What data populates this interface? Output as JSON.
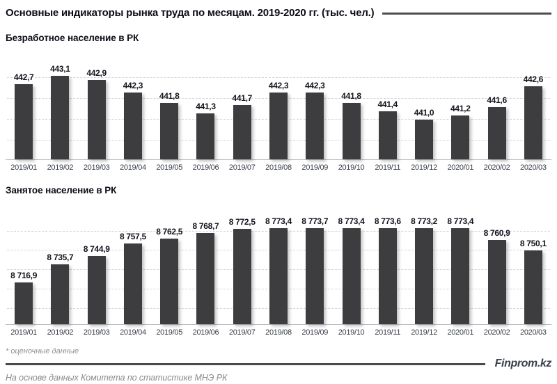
{
  "header": {
    "title": "Основные индикаторы рынка труда по месяцам. 2019-2020  гг. (тыс. чел.)"
  },
  "chart_data": [
    {
      "type": "bar",
      "title": "Безработное население в РК",
      "categories": [
        "2019/01",
        "2019/02",
        "2019/03",
        "2019/04",
        "2019/05",
        "2019/06",
        "2019/07",
        "2019/08",
        "2019/09",
        "2019/10",
        "2019/11",
        "2019/12",
        "2020/01",
        "2020/02",
        "2020/03"
      ],
      "values": [
        442.7,
        443.1,
        442.9,
        442.3,
        441.8,
        441.3,
        441.7,
        442.3,
        442.3,
        441.8,
        441.4,
        441.0,
        441.2,
        441.6,
        442.6
      ],
      "value_labels": [
        "442,7",
        "443,1",
        "442,9",
        "442,3",
        "441,8",
        "441,3",
        "441,7",
        "442,3",
        "442,3",
        "441,8",
        "441,4",
        "441,0",
        "441,2",
        "441,6",
        "442,6"
      ],
      "xlabel": "",
      "ylabel": "",
      "unit": "тыс. чел.",
      "ylim": [
        439.1,
        443.5
      ],
      "gridline_values": [
        440,
        441,
        442,
        443
      ],
      "grid": "horizontal-dashed",
      "legend": "none",
      "bar_color": "#3d3d3f"
    },
    {
      "type": "bar",
      "title": "Занятое население в РК",
      "categories": [
        "2019/01",
        "2019/02",
        "2019/03",
        "2019/04",
        "2019/05",
        "2019/06",
        "2019/07",
        "2019/08",
        "2019/09",
        "2019/10",
        "2019/11",
        "2019/12",
        "2020/01",
        "2020/02",
        "2020/03"
      ],
      "values": [
        8716.9,
        8735.7,
        8744.9,
        8757.5,
        8762.5,
        8768.7,
        8772.5,
        8773.4,
        8773.7,
        8773.4,
        8773.6,
        8773.2,
        8773.4,
        8760.9,
        8750.1
      ],
      "value_labels": [
        "8 716,9",
        "8 735,7",
        "8 744,9",
        "8 757,5",
        "8 762,5",
        "8 768,7",
        "8 772,5",
        "8 773,4",
        "8 773,7",
        "8 773,4",
        "8 773,6",
        "8 773,2",
        "8 773,4",
        "8 760,9",
        "8 750,1"
      ],
      "xlabel": "",
      "ylabel": "",
      "unit": "тыс. чел.",
      "ylim": [
        8674,
        8782
      ],
      "gridline_values": [
        8690,
        8710,
        8730,
        8750,
        8770
      ],
      "grid": "horizontal-dashed",
      "legend": "none",
      "bar_color": "#3d3d3f"
    }
  ],
  "footer": {
    "footnote": "* оценочные данные",
    "brand": "Finprom.kz",
    "source": "На основе данных  Комитета по статистике МНЭ РК"
  },
  "colors": {
    "bar": "#3d3d3f",
    "title_text": "#0d0d16",
    "value_label_text": "#14141e",
    "axis_label_text": "#373d48",
    "gridline": "#d4d4d4",
    "baseline": "#bdbdbd",
    "header_rule": "#4d4d4d",
    "footer_rule": "#4a4a4a",
    "footnote_text": "#8f8f8f",
    "brand_text": "#3a414d",
    "background": "#ffffff"
  }
}
